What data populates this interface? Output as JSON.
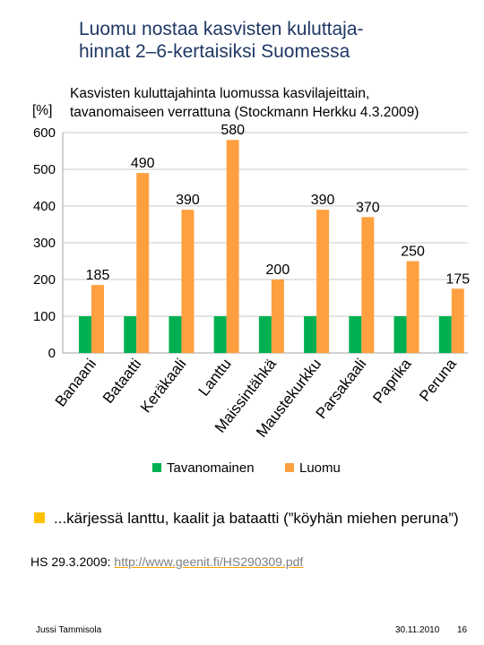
{
  "slide": {
    "title_line1": "Luomu nostaa kasvisten kuluttaja-",
    "title_line2": "hinnat 2–6-kertaisiksi Suomessa",
    "bullet": "...kärjessä lanttu, kaalit ja bataatti (”köyhän miehen peruna”)",
    "source_prefix": "HS 29.3.2009:",
    "source_link": "http://www.geenit.fi/HS290309.pdf",
    "footer_author": "Jussi Tammisola",
    "footer_date": "30.11.2010",
    "footer_page": "16"
  },
  "chart_data": {
    "type": "bar",
    "title_line1": "Kasvisten kuluttajahinta luomussa kasvilajeittain,",
    "title_line2": "tavanomaiseen verrattuna (Stockmann Herkku 4.3.2009)",
    "ylabel": "[%]",
    "xlabel": "",
    "ylim": [
      0,
      600
    ],
    "yticks": [
      0,
      100,
      200,
      300,
      400,
      500,
      600
    ],
    "grid": true,
    "legend_position": "bottom",
    "categories": [
      "Banaani",
      "Bataatti",
      "Keräkaali",
      "Lanttu",
      "Maissintähkä",
      "Maustekurkku",
      "Parsakaali",
      "Paprika",
      "Peruna"
    ],
    "series": [
      {
        "name": "Tavanomainen",
        "color": "#00b050",
        "values": [
          100,
          100,
          100,
          100,
          100,
          100,
          100,
          100,
          100
        ],
        "labels": false
      },
      {
        "name": "Luomu",
        "color": "#ffa040",
        "values": [
          185,
          490,
          390,
          580,
          200,
          390,
          370,
          250,
          175
        ],
        "labels": true
      }
    ]
  }
}
